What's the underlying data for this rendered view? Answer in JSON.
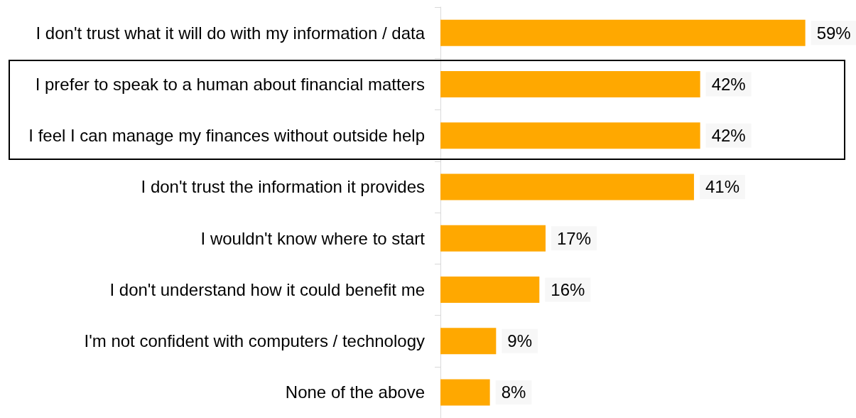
{
  "chart_data": {
    "type": "bar",
    "orientation": "horizontal",
    "tick_labels": "y",
    "categories": [
      "I don't trust what it will do with my information / data",
      "I prefer to speak to a human about financial matters",
      "I feel I can manage my finances without outside help",
      "I don't trust the information it provides",
      "I wouldn't know where to start",
      "I don't understand how it could benefit me",
      "I'm not confident with computers / technology",
      "None of the above"
    ],
    "values": [
      59,
      42,
      42,
      41,
      17,
      16,
      9,
      8
    ],
    "value_labels": [
      "59%",
      "42%",
      "42%",
      "41%",
      "17%",
      "16%",
      "9%",
      "8%"
    ],
    "color": "#ffa800"
  }
}
